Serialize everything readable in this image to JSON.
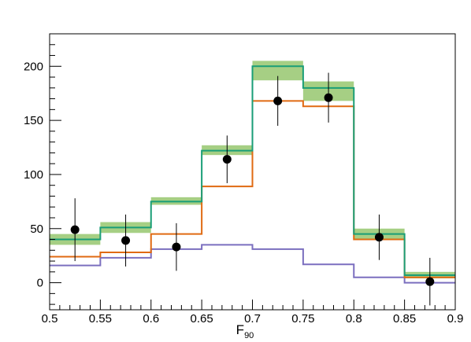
{
  "chart_data": {
    "type": "step-histogram",
    "xlabel": "F",
    "xlabel_sub": "90",
    "ylabel": "",
    "title": "",
    "xlim": [
      0.5,
      0.9
    ],
    "ylim": [
      -25,
      230
    ],
    "x_ticks": [
      "0.5",
      "0.55",
      "0.6",
      "0.65",
      "0.7",
      "0.75",
      "0.8",
      "0.85",
      "0.9"
    ],
    "y_ticks": [
      "0",
      "50",
      "100",
      "150",
      "200"
    ],
    "bin_edges": [
      0.5,
      0.55,
      0.6,
      0.65,
      0.7,
      0.75,
      0.8,
      0.85,
      0.9
    ],
    "series": [
      {
        "key": "purple",
        "color": "#7b6fbf",
        "values": [
          16,
          23,
          31,
          35,
          31,
          17,
          5,
          0
        ]
      },
      {
        "key": "orange",
        "color": "#e06a12",
        "values": [
          24,
          28,
          45,
          89,
          168,
          163,
          40,
          5
        ]
      },
      {
        "key": "green",
        "color": "#1a9e77",
        "band_color": "#a6cf84",
        "values": [
          40,
          51,
          75,
          122,
          200,
          180,
          45,
          7
        ],
        "band_low": [
          35,
          46,
          72,
          118,
          187,
          168,
          40,
          4
        ],
        "band_high": [
          45,
          56,
          79,
          127,
          205,
          186,
          50,
          10
        ]
      }
    ],
    "data_points": {
      "x": [
        0.525,
        0.575,
        0.625,
        0.675,
        0.725,
        0.775,
        0.825,
        0.875
      ],
      "y": [
        49,
        39,
        33,
        114,
        168,
        171,
        42,
        1
      ],
      "err": [
        29,
        24,
        22,
        22,
        23,
        23,
        21,
        22
      ]
    }
  }
}
